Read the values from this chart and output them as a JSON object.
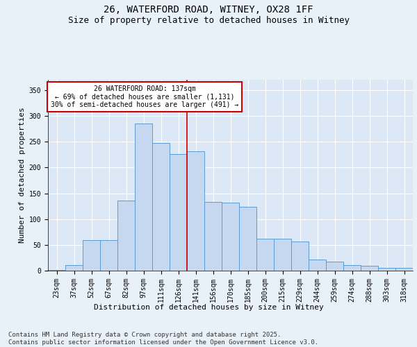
{
  "title_line1": "26, WATERFORD ROAD, WITNEY, OX28 1FF",
  "title_line2": "Size of property relative to detached houses in Witney",
  "xlabel": "Distribution of detached houses by size in Witney",
  "ylabel": "Number of detached properties",
  "categories": [
    "23sqm",
    "37sqm",
    "52sqm",
    "67sqm",
    "82sqm",
    "97sqm",
    "111sqm",
    "126sqm",
    "141sqm",
    "156sqm",
    "170sqm",
    "185sqm",
    "200sqm",
    "215sqm",
    "229sqm",
    "244sqm",
    "259sqm",
    "274sqm",
    "288sqm",
    "303sqm",
    "318sqm"
  ],
  "values": [
    2,
    11,
    59,
    59,
    136,
    285,
    248,
    226,
    232,
    133,
    132,
    124,
    62,
    62,
    57,
    21,
    17,
    11,
    10,
    5,
    5
  ],
  "bar_color": "#c5d8f0",
  "bar_edge_color": "#5b9bd5",
  "vline_x_index": 8,
  "vline_color": "#cc0000",
  "annotation_text": "26 WATERFORD ROAD: 137sqm\n← 69% of detached houses are smaller (1,131)\n30% of semi-detached houses are larger (491) →",
  "annotation_box_color": "#ffffff",
  "annotation_box_edge_color": "#cc0000",
  "ylim": [
    0,
    370
  ],
  "yticks": [
    0,
    50,
    100,
    150,
    200,
    250,
    300,
    350
  ],
  "plot_bg_color": "#dce8f5",
  "fig_bg_color": "#e8f0f8",
  "grid_color": "#ffffff",
  "footer_text": "Contains HM Land Registry data © Crown copyright and database right 2025.\nContains public sector information licensed under the Open Government Licence v3.0.",
  "title_fontsize": 10,
  "subtitle_fontsize": 9,
  "axis_label_fontsize": 8,
  "tick_fontsize": 7,
  "annotation_fontsize": 7,
  "footer_fontsize": 6.5
}
